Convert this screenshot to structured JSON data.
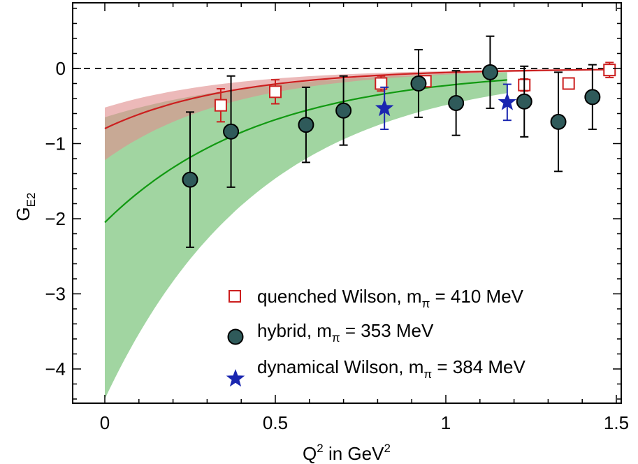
{
  "chart_data": {
    "type": "scatter",
    "xlabel": {
      "main": "Q",
      "sup1": "2",
      "mid": " in GeV",
      "sup2": "2"
    },
    "ylabel": {
      "main": "G",
      "sub": "E2"
    },
    "xlim": [
      -0.1,
      1.5
    ],
    "ylim": [
      -4.5,
      0.9
    ],
    "x_ticks": [
      0,
      0.5,
      1,
      1.5
    ],
    "x_tick_labels": [
      "0",
      "0.5",
      "1",
      "1.5"
    ],
    "y_ticks": [
      0,
      -1,
      -2,
      -3,
      -4
    ],
    "y_tick_labels": [
      "0",
      "−1",
      "−2",
      "−3",
      "−4"
    ],
    "zero_line": true,
    "colors": {
      "quenched": "#cc1f1f",
      "quenched_band": "#e08e8e",
      "hybrid_fill": "#2f5a5a",
      "hybrid_fit": "#119911",
      "hybrid_band": "#8ccc8c",
      "dynamical": "#1a26b0",
      "errorbar": "#000000"
    },
    "fits": [
      {
        "name": "quenched-fit",
        "amplitude": -0.8,
        "decay": 2.7,
        "band_lo": -1.22,
        "band_hi": -0.52,
        "x_range": [
          0,
          1.48
        ]
      },
      {
        "name": "hybrid-fit",
        "amplitude": -2.05,
        "decay": 2.2,
        "band_lo": -4.4,
        "band_hi": -0.65,
        "x_range": [
          0,
          1.18
        ]
      }
    ],
    "series": [
      {
        "name": "quenched",
        "marker": "square",
        "points": [
          {
            "x": 0.34,
            "y": -0.49,
            "err": 0.22
          },
          {
            "x": 0.5,
            "y": -0.31,
            "err": 0.16
          },
          {
            "x": 0.81,
            "y": -0.2,
            "err": 0.1
          },
          {
            "x": 0.94,
            "y": -0.17,
            "err": 0.06
          },
          {
            "x": 1.23,
            "y": -0.22,
            "err": 0.08
          },
          {
            "x": 1.36,
            "y": -0.2,
            "err": 0.05
          },
          {
            "x": 1.48,
            "y": -0.02,
            "err": 0.1
          }
        ]
      },
      {
        "name": "hybrid",
        "marker": "circle",
        "points": [
          {
            "x": 0.25,
            "y": -1.48,
            "err": 0.9
          },
          {
            "x": 0.37,
            "y": -0.84,
            "err": 0.74
          },
          {
            "x": 0.59,
            "y": -0.75,
            "err": 0.5
          },
          {
            "x": 0.7,
            "y": -0.56,
            "err": 0.46
          },
          {
            "x": 0.92,
            "y": -0.2,
            "err": 0.45
          },
          {
            "x": 1.03,
            "y": -0.46,
            "err": 0.43
          },
          {
            "x": 1.13,
            "y": -0.05,
            "err": 0.48
          },
          {
            "x": 1.23,
            "y": -0.44,
            "err": 0.47
          },
          {
            "x": 1.33,
            "y": -0.71,
            "err": 0.66
          },
          {
            "x": 1.43,
            "y": -0.38,
            "err": 0.43
          }
        ]
      },
      {
        "name": "dynamical",
        "marker": "star",
        "points": [
          {
            "x": 0.82,
            "y": -0.53,
            "err": 0.28
          },
          {
            "x": 1.18,
            "y": -0.45,
            "err": 0.24
          }
        ]
      }
    ],
    "legend": [
      {
        "series": "quenched",
        "text": "quenched Wilson, m",
        "sub": "π",
        "tail": " = 410 MeV"
      },
      {
        "series": "hybrid",
        "text": "hybrid, m",
        "sub": "π",
        "tail": " = 353 MeV"
      },
      {
        "series": "dynamical",
        "text": "dynamical Wilson, m",
        "sub": "π",
        "tail": " = 384 MeV"
      }
    ],
    "legend_position": "bottom-right"
  }
}
